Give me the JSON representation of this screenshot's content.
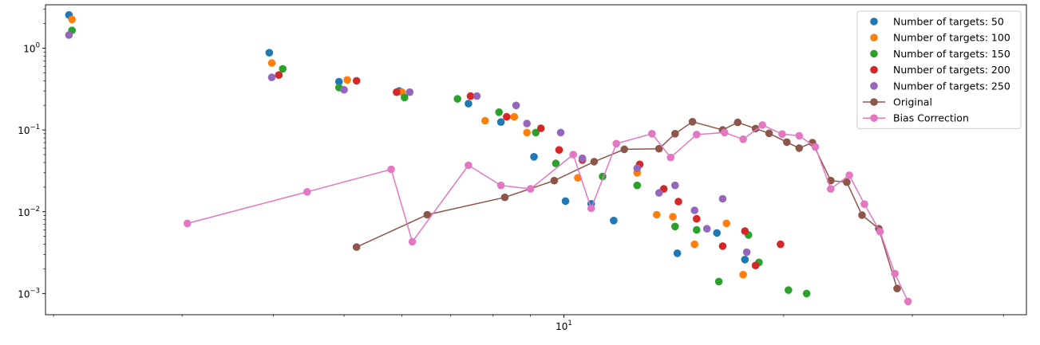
{
  "chart_data": {
    "type": "scatter",
    "xscale": "log",
    "yscale": "log",
    "xlim": [
      1.95,
      43
    ],
    "ylim": [
      0.00055,
      3.4
    ],
    "x_major_ticks": [
      {
        "value": 10,
        "label": "10",
        "exp": "1"
      }
    ],
    "x_minor_ticks": [
      2,
      3,
      4,
      5,
      6,
      7,
      8,
      9,
      20,
      30,
      40
    ],
    "y_major_ticks": [
      {
        "value": 0.001,
        "label": "10",
        "exp": "−3"
      },
      {
        "value": 0.01,
        "label": "10",
        "exp": "−2"
      },
      {
        "value": 0.1,
        "label": "10",
        "exp": "−1"
      },
      {
        "value": 1,
        "label": "10",
        "exp": "0"
      }
    ],
    "y_minor_ticks": [
      0.002,
      0.003,
      0.004,
      0.005,
      0.006,
      0.007,
      0.008,
      0.009,
      0.02,
      0.03,
      0.04,
      0.05,
      0.06,
      0.07,
      0.08,
      0.09,
      0.2,
      0.3,
      0.4,
      0.5,
      0.6,
      0.7,
      0.8,
      0.9,
      2,
      3
    ],
    "legend_position": "top-right",
    "series": [
      {
        "name": "Number of targets: 50",
        "kind": "scatter",
        "color": "#1f77b4",
        "points": [
          [
            2.1,
            2.55
          ],
          [
            3.95,
            0.88
          ],
          [
            4.92,
            0.39
          ],
          [
            5.95,
            0.3
          ],
          [
            7.4,
            0.21
          ],
          [
            8.2,
            0.125
          ],
          [
            9.1,
            0.047
          ],
          [
            10.05,
            0.0135
          ],
          [
            10.9,
            0.0125
          ],
          [
            11.7,
            0.0078
          ],
          [
            14.3,
            0.0031
          ],
          [
            16.2,
            0.0055
          ],
          [
            17.7,
            0.0026
          ]
        ]
      },
      {
        "name": "Number of targets: 100",
        "kind": "scatter",
        "color": "#ff7f0e",
        "points": [
          [
            2.12,
            2.25
          ],
          [
            3.98,
            0.66
          ],
          [
            5.05,
            0.41
          ],
          [
            6.0,
            0.29
          ],
          [
            7.8,
            0.13
          ],
          [
            8.55,
            0.145
          ],
          [
            8.9,
            0.093
          ],
          [
            10.45,
            0.026
          ],
          [
            12.6,
            0.03
          ],
          [
            13.4,
            0.0092
          ],
          [
            14.1,
            0.0087
          ],
          [
            15.1,
            0.004
          ],
          [
            16.7,
            0.0072
          ],
          [
            17.6,
            0.0017
          ]
        ]
      },
      {
        "name": "Number of targets: 150",
        "kind": "scatter",
        "color": "#2ca02c",
        "points": [
          [
            2.12,
            1.65
          ],
          [
            4.12,
            0.56
          ],
          [
            4.92,
            0.33
          ],
          [
            6.05,
            0.25
          ],
          [
            7.15,
            0.24
          ],
          [
            8.15,
            0.165
          ],
          [
            9.15,
            0.093
          ],
          [
            9.75,
            0.039
          ],
          [
            11.3,
            0.027
          ],
          [
            12.6,
            0.021
          ],
          [
            14.2,
            0.0066
          ],
          [
            15.2,
            0.006
          ],
          [
            16.3,
            0.0014
          ],
          [
            17.9,
            0.0052
          ],
          [
            18.5,
            0.0024
          ],
          [
            20.3,
            0.0011
          ],
          [
            21.5,
            0.001
          ]
        ]
      },
      {
        "name": "Number of targets: 200",
        "kind": "scatter",
        "color": "#d62728",
        "points": [
          [
            4.07,
            0.47
          ],
          [
            5.2,
            0.4
          ],
          [
            5.9,
            0.29
          ],
          [
            7.45,
            0.26
          ],
          [
            8.35,
            0.145
          ],
          [
            9.3,
            0.105
          ],
          [
            9.85,
            0.057
          ],
          [
            10.6,
            0.043
          ],
          [
            12.7,
            0.038
          ],
          [
            13.7,
            0.019
          ],
          [
            14.35,
            0.0133
          ],
          [
            15.2,
            0.0082
          ],
          [
            16.5,
            0.0038
          ],
          [
            17.7,
            0.0058
          ],
          [
            18.3,
            0.0022
          ],
          [
            19.8,
            0.004
          ]
        ]
      },
      {
        "name": "Number of targets: 250",
        "kind": "scatter",
        "color": "#9467bd",
        "points": [
          [
            2.1,
            1.45
          ],
          [
            3.98,
            0.44
          ],
          [
            5.0,
            0.31
          ],
          [
            6.15,
            0.29
          ],
          [
            7.6,
            0.26
          ],
          [
            8.6,
            0.2
          ],
          [
            8.9,
            0.12
          ],
          [
            9.9,
            0.093
          ],
          [
            10.6,
            0.045
          ],
          [
            12.6,
            0.034
          ],
          [
            13.5,
            0.017
          ],
          [
            14.2,
            0.021
          ],
          [
            15.1,
            0.0104
          ],
          [
            15.7,
            0.0062
          ],
          [
            16.5,
            0.0144
          ],
          [
            17.8,
            0.0032
          ]
        ]
      },
      {
        "name": "Original",
        "kind": "line",
        "color": "#8c564b",
        "points": [
          [
            5.2,
            0.0037
          ],
          [
            6.5,
            0.0092
          ],
          [
            8.3,
            0.015
          ],
          [
            9.7,
            0.024
          ],
          [
            11.0,
            0.041
          ],
          [
            12.1,
            0.058
          ],
          [
            13.5,
            0.059
          ],
          [
            14.2,
            0.09
          ],
          [
            15.0,
            0.126
          ],
          [
            16.5,
            0.1
          ],
          [
            17.3,
            0.124
          ],
          [
            18.3,
            0.104
          ],
          [
            19.1,
            0.091
          ],
          [
            20.2,
            0.071
          ],
          [
            21.0,
            0.06
          ],
          [
            21.9,
            0.07
          ],
          [
            23.2,
            0.024
          ],
          [
            24.4,
            0.023
          ],
          [
            25.6,
            0.0091
          ],
          [
            27.0,
            0.0062
          ],
          [
            28.6,
            0.00115
          ]
        ]
      },
      {
        "name": "Bias Correction",
        "kind": "line",
        "color": "#e377c2",
        "points": [
          [
            3.05,
            0.0072
          ],
          [
            4.45,
            0.0175
          ],
          [
            5.8,
            0.033
          ],
          [
            6.2,
            0.0043
          ],
          [
            7.4,
            0.037
          ],
          [
            8.2,
            0.021
          ],
          [
            9.0,
            0.019
          ],
          [
            10.3,
            0.05
          ],
          [
            10.9,
            0.011
          ],
          [
            11.8,
            0.068
          ],
          [
            13.2,
            0.09
          ],
          [
            14.0,
            0.046
          ],
          [
            15.2,
            0.088
          ],
          [
            16.6,
            0.093
          ],
          [
            17.6,
            0.077
          ],
          [
            18.7,
            0.115
          ],
          [
            19.9,
            0.089
          ],
          [
            21.0,
            0.085
          ],
          [
            22.1,
            0.062
          ],
          [
            23.2,
            0.019
          ],
          [
            24.6,
            0.028
          ],
          [
            25.8,
            0.0124
          ],
          [
            27.1,
            0.0057
          ],
          [
            28.4,
            0.00175
          ],
          [
            29.6,
            0.0008
          ]
        ]
      }
    ]
  }
}
